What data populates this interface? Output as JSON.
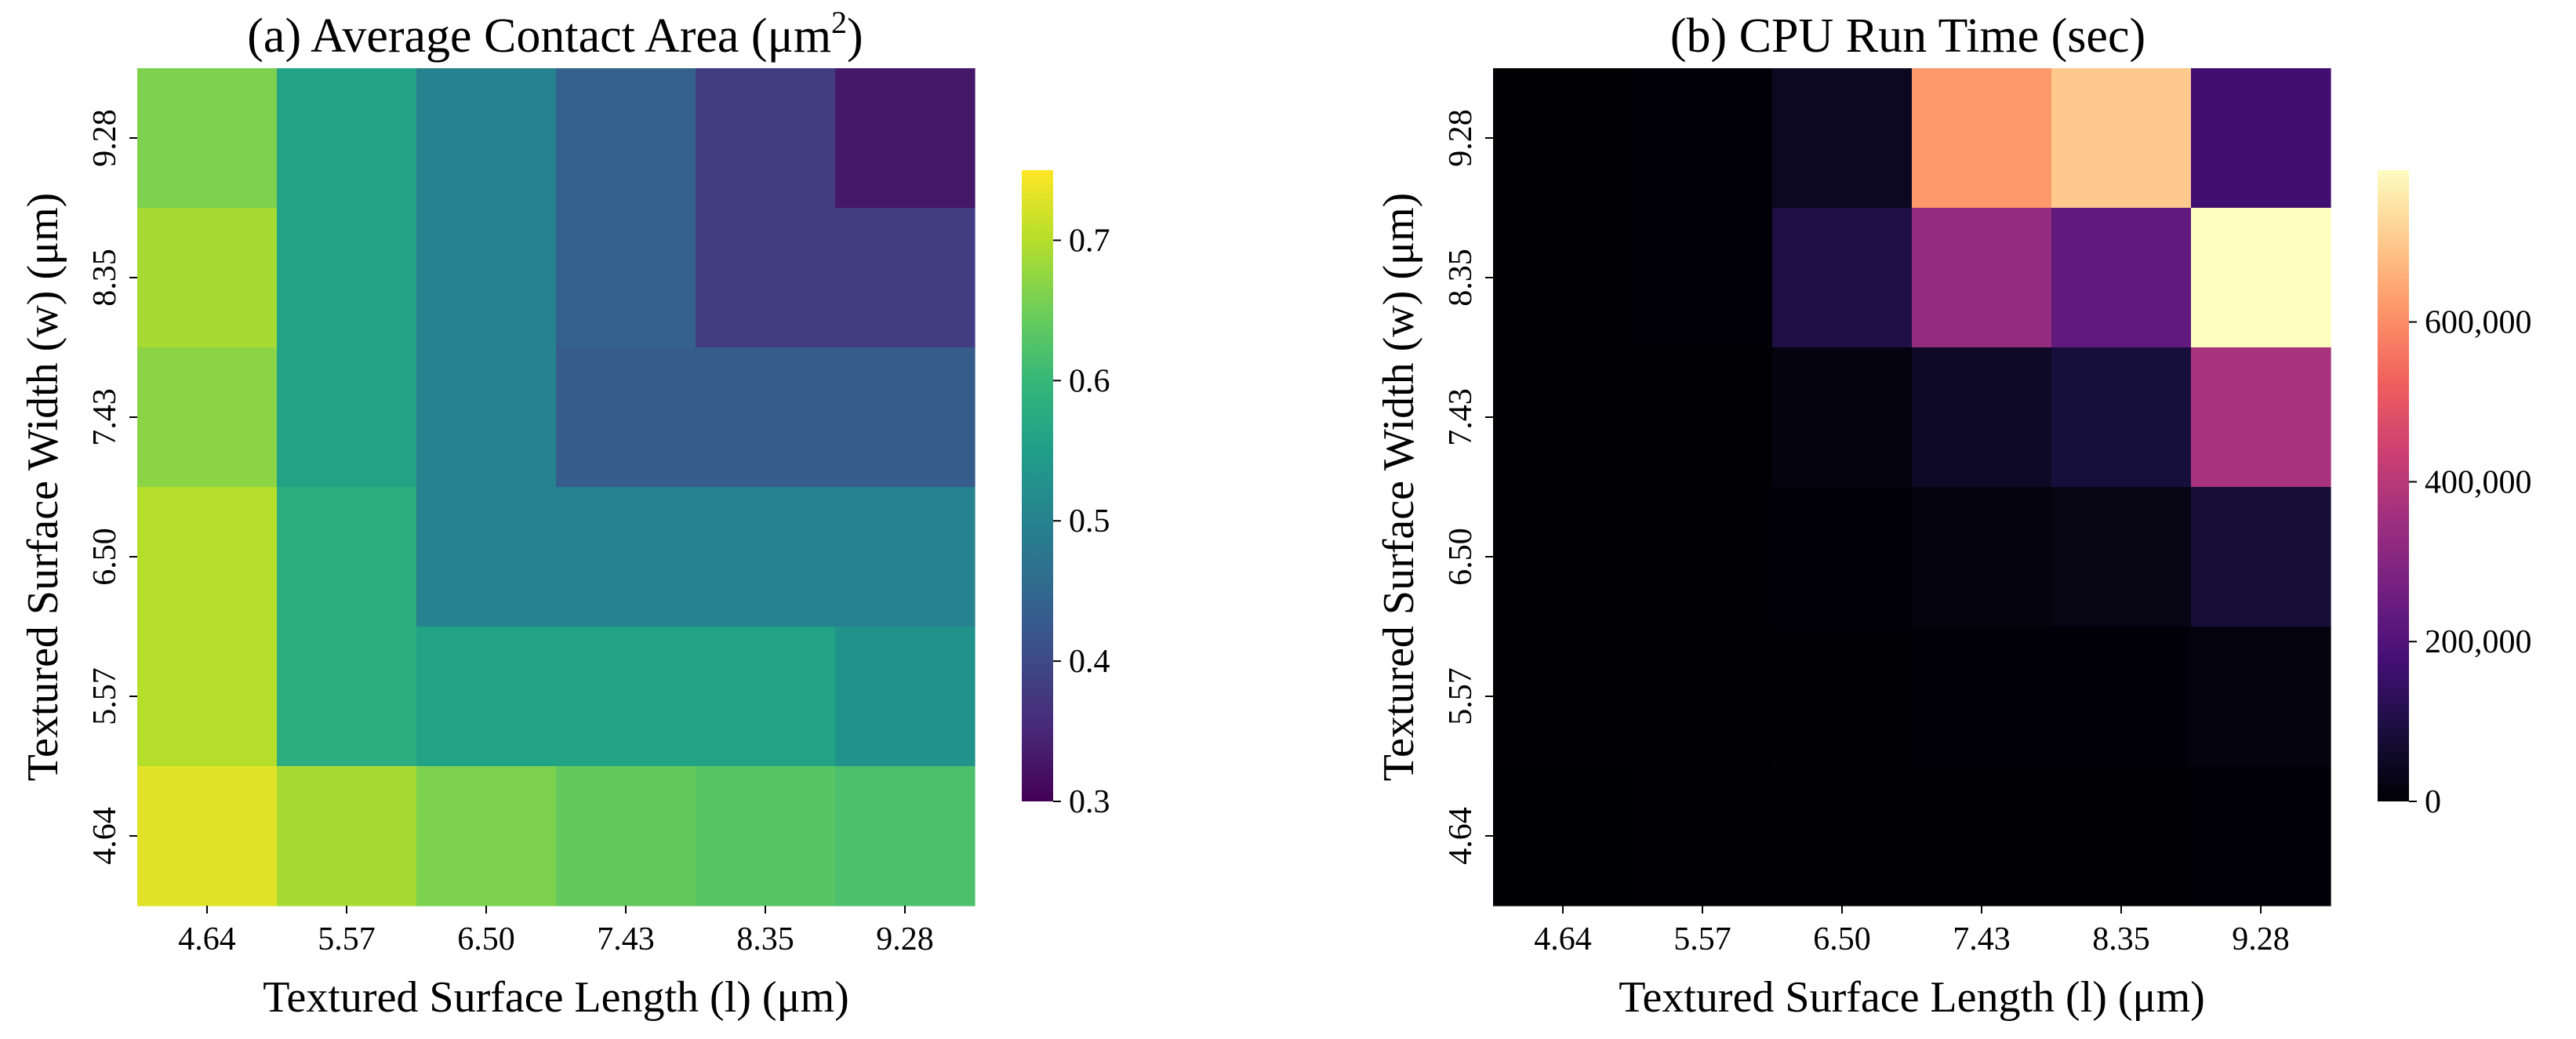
{
  "chart_data": [
    {
      "id": "a",
      "type": "heatmap",
      "title": "(a) Average Contact Area (μm",
      "title_sup": "2",
      "title_close": ")",
      "xlabel": "Textured Surface Length (l) (μm)",
      "ylabel": "Textured Surface Width (w) (μm)",
      "x_ticks": [
        "4.64",
        "5.57",
        "6.50",
        "7.43",
        "8.35",
        "9.28"
      ],
      "y_ticks_top_to_bottom": [
        "9.28",
        "8.35",
        "7.43",
        "6.50",
        "5.57",
        "4.64"
      ],
      "values_top_to_bottom": [
        [
          0.66,
          0.56,
          0.5,
          0.44,
          0.38,
          0.33
        ],
        [
          0.69,
          0.56,
          0.5,
          0.44,
          0.38,
          0.38
        ],
        [
          0.67,
          0.56,
          0.5,
          0.43,
          0.43,
          0.43
        ],
        [
          0.7,
          0.58,
          0.5,
          0.5,
          0.5,
          0.5
        ],
        [
          0.7,
          0.58,
          0.56,
          0.56,
          0.56,
          0.53
        ],
        [
          0.73,
          0.69,
          0.66,
          0.64,
          0.63,
          0.62
        ]
      ],
      "colormap": "viridis",
      "vmin": 0.3,
      "vmax": 0.75,
      "colorbar_ticks": [
        {
          "value": 0.7,
          "label": "0.7"
        },
        {
          "value": 0.6,
          "label": "0.6"
        },
        {
          "value": 0.5,
          "label": "0.5"
        },
        {
          "value": 0.4,
          "label": "0.4"
        },
        {
          "value": 0.3,
          "label": "0.3"
        }
      ]
    },
    {
      "id": "b",
      "type": "heatmap",
      "title": "(b) CPU Run Time (sec)",
      "title_sup": "",
      "title_close": "",
      "xlabel": "Textured Surface Length (l) (μm)",
      "ylabel": "Textured Surface Width (w) (μm)",
      "x_ticks": [
        "4.64",
        "5.57",
        "6.50",
        "7.43",
        "8.35",
        "9.28"
      ],
      "y_ticks_top_to_bottom": [
        "9.28",
        "8.35",
        "7.43",
        "6.50",
        "5.57",
        "4.64"
      ],
      "values_top_to_bottom": [
        [
          3000,
          4000,
          45000,
          620000,
          700000,
          170000
        ],
        [
          3000,
          4000,
          100000,
          330000,
          230000,
          790000
        ],
        [
          2000,
          3000,
          15000,
          55000,
          85000,
          370000
        ],
        [
          1500,
          2000,
          8000,
          15000,
          25000,
          80000
        ],
        [
          1000,
          1500,
          3000,
          5000,
          8000,
          15000
        ],
        [
          500,
          1000,
          1500,
          2000,
          3000,
          5000
        ]
      ],
      "colormap": "magma",
      "vmin": 0,
      "vmax": 790000,
      "colorbar_ticks": [
        {
          "value": 600000,
          "label": "600,000"
        },
        {
          "value": 400000,
          "label": "400,000"
        },
        {
          "value": 200000,
          "label": "200,000"
        },
        {
          "value": 0,
          "label": "0"
        }
      ]
    }
  ]
}
